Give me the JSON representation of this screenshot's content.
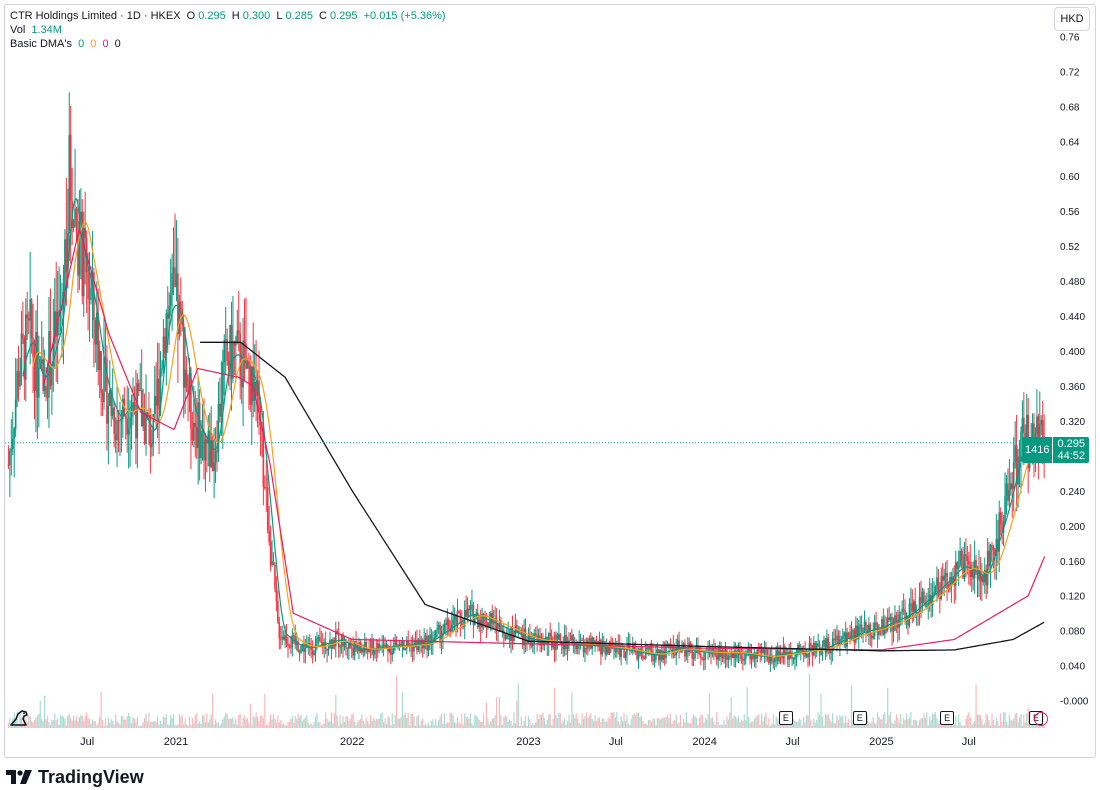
{
  "legend": {
    "symbol_line": "CTR Holdings Limited · 1D · HKEX",
    "o_label": "O",
    "o_val": "0.295",
    "h_label": "H",
    "h_val": "0.300",
    "l_label": "L",
    "l_val": "0.285",
    "c_label": "C",
    "c_val": "0.295",
    "change": "+0.015 (+5.36%)",
    "vol_label": "Vol",
    "vol_val": "1.34M",
    "dma_label": "Basic DMA's",
    "dma_vals": [
      "0",
      "0",
      "0",
      "0"
    ]
  },
  "currency": "HKD",
  "price_tag": {
    "volume": "1416",
    "price": "0.295",
    "countdown": "44:52"
  },
  "footer": {
    "brand": "TradingView",
    "logo_icon": "tradingview-logo-icon"
  },
  "earnings_markers": [
    {
      "label": "E",
      "date": "2024-06"
    },
    {
      "label": "E",
      "date": "2024-11"
    },
    {
      "label": "E",
      "date": "2025-05"
    },
    {
      "label": "E",
      "date": "2025-11"
    }
  ],
  "colors": {
    "up": "#089981",
    "down": "#f23645",
    "dma_fast": "#089981",
    "dma_mid": "#f7a21b",
    "dma_slow": "#e91e63",
    "dma_long": "#131722"
  },
  "chart_data": {
    "type": "line",
    "title": "CTR Holdings Limited · 1D · HKEX",
    "x_tick_labels": [
      "Jul",
      "2021",
      "2022",
      "2023",
      "Jul",
      "2024",
      "Jul",
      "2025",
      "Jul"
    ],
    "x_ticks": [
      "2020-07",
      "2021-01",
      "2022-01",
      "2023-01",
      "2023-07",
      "2024-01",
      "2024-07",
      "2025-01",
      "2025-07"
    ],
    "y_tick_labels": [
      "0.76",
      "0.72",
      "0.68",
      "0.64",
      "0.60",
      "0.56",
      "0.52",
      "0.480",
      "0.440",
      "0.400",
      "0.360",
      "0.320",
      "0.240",
      "0.200",
      "0.160",
      "0.120",
      "0.080",
      "0.040",
      "-0.000"
    ],
    "ylim": [
      -0.005,
      0.765
    ],
    "current_price": 0.295,
    "series": [
      {
        "name": "Price",
        "x": [
          "2020-01-20",
          "2020-02-10",
          "2020-03-05",
          "2020-03-25",
          "2020-04-20",
          "2020-05-10",
          "2020-05-25",
          "2020-06-08",
          "2020-06-22",
          "2020-07-10",
          "2020-08-05",
          "2020-09-01",
          "2020-09-25",
          "2020-10-20",
          "2020-11-15",
          "2020-12-10",
          "2020-12-28",
          "2021-01-12",
          "2021-02-01",
          "2021-02-25",
          "2021-03-20",
          "2021-04-10",
          "2021-04-30",
          "2021-05-25",
          "2021-06-15",
          "2021-07-05",
          "2021-08-01",
          "2021-09-01",
          "2021-10-01",
          "2021-11-01",
          "2021-12-01",
          "2022-01-05",
          "2022-01-25",
          "2022-02-20",
          "2022-04-01",
          "2022-06-01",
          "2022-09-01",
          "2023-01-01",
          "2023-04-01",
          "2023-07-01",
          "2023-09-15",
          "2023-11-01",
          "2024-01-01",
          "2024-03-01",
          "2024-05-01",
          "2024-07-01",
          "2024-09-01",
          "2024-11-01",
          "2025-01-01",
          "2025-03-01",
          "2025-05-01",
          "2025-06-15",
          "2025-08-01",
          "2025-09-15",
          "2025-10-20",
          "2025-11-05",
          "2025-11-20",
          "2025-12-05"
        ],
        "values": [
          0.27,
          0.38,
          0.42,
          0.36,
          0.4,
          0.45,
          0.6,
          0.55,
          0.5,
          0.46,
          0.36,
          0.32,
          0.34,
          0.33,
          0.3,
          0.44,
          0.46,
          0.42,
          0.33,
          0.3,
          0.28,
          0.38,
          0.4,
          0.38,
          0.36,
          0.24,
          0.08,
          0.065,
          0.06,
          0.065,
          0.07,
          0.06,
          0.058,
          0.06,
          0.062,
          0.065,
          0.1,
          0.07,
          0.065,
          0.06,
          0.052,
          0.06,
          0.055,
          0.055,
          0.05,
          0.055,
          0.06,
          0.075,
          0.085,
          0.1,
          0.13,
          0.155,
          0.14,
          0.22,
          0.3,
          0.295,
          0.295,
          0.295
        ]
      },
      {
        "name": "DMA",
        "x": [
          "2020-04-01",
          "2020-06-15",
          "2020-08-15",
          "2020-10-20",
          "2020-12-28",
          "2021-02-15",
          "2021-05-10",
          "2021-06-10",
          "2021-07-15",
          "2021-09-01",
          "2022-01-01",
          "2023-01-01",
          "2024-01-01",
          "2025-01-01",
          "2025-06-01",
          "2025-11-01",
          "2025-12-05"
        ],
        "values": [
          0.36,
          0.54,
          0.42,
          0.33,
          0.31,
          0.38,
          0.37,
          0.36,
          0.27,
          0.1,
          0.07,
          0.065,
          0.06,
          0.058,
          0.07,
          0.12,
          0.165
        ]
      },
      {
        "name": "DMA",
        "x": [
          "2021-02-20",
          "2021-05-15",
          "2021-08-15",
          "2022-01-01",
          "2022-06-01",
          "2023-01-01",
          "2024-01-01",
          "2025-01-01",
          "2025-06-01",
          "2025-10-01",
          "2025-12-05"
        ],
        "values": [
          0.41,
          0.41,
          0.37,
          0.24,
          0.11,
          0.068,
          0.062,
          0.057,
          0.058,
          0.07,
          0.09
        ]
      }
    ],
    "grid": false,
    "legend_position": "top-left"
  }
}
